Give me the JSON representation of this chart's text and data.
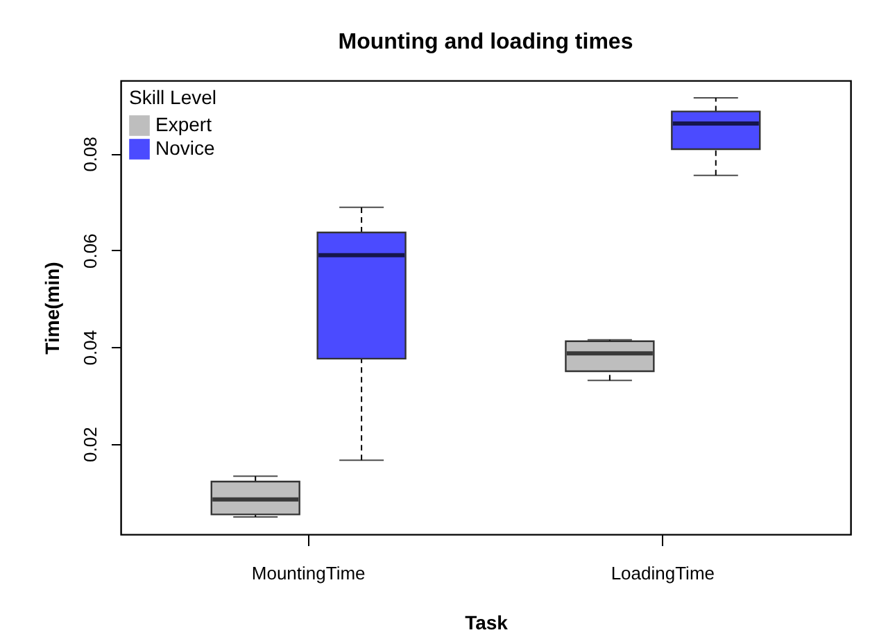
{
  "chart_data": {
    "type": "box",
    "title": "Mounting and loading times",
    "xlabel": "Task",
    "ylabel": "Time(min)",
    "legend_title": "Skill Level",
    "legend": "top left",
    "grid": false,
    "categories": [
      "MountingTime",
      "LoadingTime"
    ],
    "ylim": [
      0.0013,
      0.0951
    ],
    "yticks": [
      0.02,
      0.04,
      0.06,
      0.08
    ],
    "series": [
      {
        "name": "Expert",
        "color": "#bebebe",
        "boxes": [
          {
            "low": 0.0049,
            "q1": 0.0054,
            "median": 0.0085,
            "q3": 0.0122,
            "high": 0.0133
          },
          {
            "low": 0.0331,
            "q1": 0.035,
            "median": 0.0387,
            "q3": 0.0412,
            "high": 0.0415
          }
        ]
      },
      {
        "name": "Novice",
        "color": "#4b4bff",
        "boxes": [
          {
            "low": 0.0166,
            "q1": 0.0376,
            "median": 0.059,
            "q3": 0.0637,
            "high": 0.0689
          },
          {
            "low": 0.0755,
            "q1": 0.0809,
            "median": 0.0862,
            "q3": 0.0887,
            "high": 0.0915
          }
        ]
      }
    ]
  }
}
